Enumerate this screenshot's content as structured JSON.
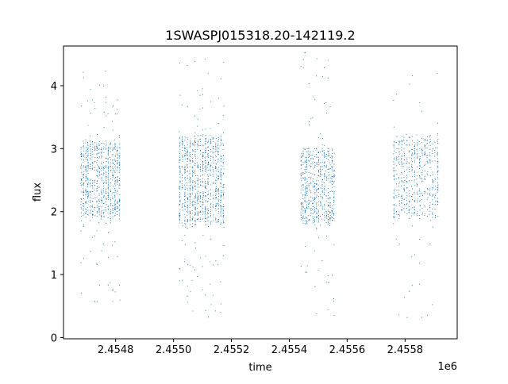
{
  "chart_data": {
    "type": "scatter",
    "title": "1SWASPJ015318.20-142119.2",
    "xlabel": "time",
    "ylabel": "flux",
    "x_offset_label": "1e6",
    "xlim": [
      2.45462,
      2.45598
    ],
    "ylim": [
      -0.02,
      4.63
    ],
    "x_ticks": [
      2.4548,
      2.455,
      2.4552,
      2.4554,
      2.4556,
      2.4558
    ],
    "x_tick_labels": [
      "2.4548",
      "2.4550",
      "2.4552",
      "2.4554",
      "2.4556",
      "2.4558"
    ],
    "y_ticks": [
      0,
      1,
      2,
      3,
      4
    ],
    "y_tick_labels": [
      "0",
      "1",
      "2",
      "3",
      "4"
    ],
    "grid": false,
    "marker_color": "#1f77b4",
    "series": [
      {
        "segments": [
          {
            "x_range": [
              2.45468,
              2.45482
            ],
            "core": [
              1.9,
              3.1
            ],
            "spread": [
              0.55,
              4.25
            ],
            "density": 0.55
          },
          {
            "x_range": [
              2.45502,
              2.45518
            ],
            "core": [
              1.8,
              3.2
            ],
            "spread": [
              0.3,
              4.45
            ],
            "density": 0.7
          },
          {
            "x_range": [
              2.45544,
              2.45556
            ],
            "core": [
              1.8,
              3.0
            ],
            "spread": [
              0.2,
              4.55
            ],
            "density": 0.45
          },
          {
            "x_range": [
              2.45576,
              2.45592
            ],
            "core": [
              1.9,
              3.2
            ],
            "spread": [
              0.3,
              4.2
            ],
            "density": 0.4
          }
        ],
        "sample_points": [
          [
            2.45469,
            2.1
          ],
          [
            2.45472,
            2.9
          ],
          [
            2.45475,
            2.3
          ],
          [
            2.45478,
            2.7
          ],
          [
            2.45481,
            2.0
          ],
          [
            2.45503,
            2.4
          ],
          [
            2.45507,
            2.8
          ],
          [
            2.45511,
            2.2
          ],
          [
            2.45514,
            3.0
          ],
          [
            2.45517,
            2.5
          ],
          [
            2.45545,
            2.6
          ],
          [
            2.45548,
            2.1
          ],
          [
            2.45551,
            2.9
          ],
          [
            2.45554,
            2.3
          ],
          [
            2.45577,
            2.4
          ],
          [
            2.45581,
            2.8
          ],
          [
            2.45585,
            2.2
          ],
          [
            2.45588,
            2.9
          ],
          [
            2.45591,
            2.5
          ]
        ]
      }
    ]
  }
}
